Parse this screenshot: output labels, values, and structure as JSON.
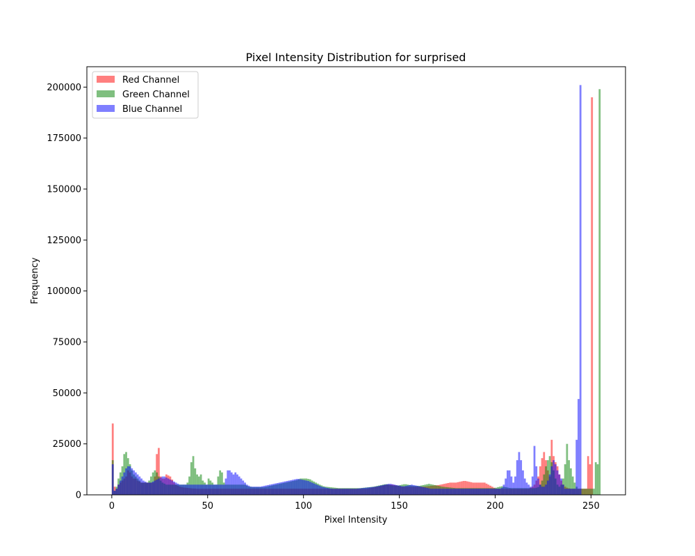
{
  "chart_data": {
    "type": "bar",
    "title": "Pixel Intensity Distribution for surprised",
    "xlabel": "Pixel Intensity",
    "ylabel": "Frequency",
    "xlim": [
      -13,
      268
    ],
    "ylim": [
      0,
      210000
    ],
    "x_ticks": [
      0,
      50,
      100,
      150,
      200,
      250
    ],
    "y_ticks": [
      0,
      25000,
      50000,
      75000,
      100000,
      125000,
      150000,
      175000,
      200000
    ],
    "x_tick_labels": [
      "0",
      "50",
      "100",
      "150",
      "200",
      "250"
    ],
    "y_tick_labels": [
      "0",
      "25000",
      "50000",
      "75000",
      "100000",
      "125000",
      "150000",
      "175000",
      "200000"
    ],
    "legend_position": "upper-left",
    "grid": false,
    "series": [
      {
        "name": "Red Channel",
        "color": "#ff0000",
        "values": [
          35000,
          4000,
          3000,
          5000,
          6000,
          7000,
          8000,
          9000,
          12000,
          11000,
          9000,
          8000,
          8000,
          7000,
          6500,
          6000,
          6000,
          6000,
          6000,
          6000,
          6000,
          6000,
          9000,
          20000,
          23000,
          9000,
          8000,
          8000,
          10000,
          9500,
          9000,
          7500,
          6000,
          5000,
          4500,
          4000,
          3800,
          3600,
          3500,
          3400,
          3300,
          3200,
          3100,
          3100,
          3000,
          3000,
          3000,
          3000,
          3000,
          3000,
          3000,
          3000,
          3000,
          3000,
          3000,
          3000,
          3000,
          3000,
          3000,
          3000,
          3000,
          3000,
          3000,
          3000,
          3000,
          3000,
          3000,
          3000,
          3000,
          3000,
          3000,
          3000,
          3000,
          3000,
          3000,
          3000,
          3000,
          3000,
          3000,
          3000,
          3000,
          3000,
          3000,
          3000,
          3000,
          3000,
          3000,
          3000,
          3000,
          3000,
          3000,
          3000,
          3000,
          3000,
          3000,
          3000,
          3000,
          3000,
          3000,
          3000,
          3000,
          3000,
          3000,
          3000,
          3000,
          3000,
          3000,
          3000,
          3000,
          3000,
          3000,
          3000,
          3000,
          3000,
          3000,
          3000,
          3000,
          3000,
          3000,
          3000,
          3000,
          3000,
          3000,
          3000,
          3000,
          3000,
          3000,
          3000,
          3000,
          3000,
          3000,
          3000,
          3000,
          3100,
          3300,
          3500,
          3700,
          3900,
          4000,
          4200,
          4400,
          4600,
          4800,
          5000,
          5000,
          5000,
          5000,
          4800,
          4600,
          4400,
          4200,
          4000,
          4000,
          4000,
          4000,
          4000,
          4000,
          4000,
          4000,
          4000,
          4000,
          4000,
          4000,
          4100,
          4200,
          4300,
          4400,
          4500,
          4600,
          4700,
          4800,
          5000,
          5200,
          5400,
          5600,
          5800,
          6000,
          6000,
          6000,
          6000,
          6200,
          6400,
          6600,
          6800,
          6800,
          6600,
          6400,
          6200,
          6000,
          6000,
          6000,
          6000,
          6000,
          6000,
          6000,
          5500,
          5000,
          4500,
          4000,
          3500,
          3000,
          3000,
          3000,
          3000,
          3000,
          3000,
          3000,
          3000,
          3000,
          3000,
          3000,
          3000,
          3000,
          3000,
          3000,
          3000,
          3000,
          3000,
          3500,
          4000,
          5000,
          7000,
          9000,
          14000,
          18000,
          21000,
          17000,
          12000,
          9000,
          27000,
          19000,
          16000,
          14000,
          10000,
          7000,
          5000,
          4000,
          3500,
          3200,
          3000,
          3000,
          3000,
          3000,
          3000,
          3000,
          3000,
          3000,
          3000,
          19000,
          15000,
          195000
        ]
      },
      {
        "name": "Green Channel",
        "color": "#008000",
        "values": [
          17000,
          2000,
          4000,
          8000,
          11000,
          14000,
          20000,
          21000,
          18000,
          15000,
          12000,
          10000,
          9000,
          8000,
          7000,
          6000,
          6000,
          6000,
          6000,
          7000,
          9000,
          11000,
          12000,
          11000,
          9000,
          7000,
          6000,
          5500,
          5000,
          5000,
          5000,
          5000,
          5000,
          5000,
          5000,
          5000,
          5000,
          5000,
          5000,
          6000,
          9000,
          16000,
          19000,
          13000,
          10000,
          9000,
          10000,
          7000,
          6000,
          5000,
          8000,
          7000,
          6000,
          5000,
          5000,
          9000,
          12000,
          11000,
          6000,
          5000,
          5000,
          5000,
          5000,
          5000,
          5000,
          5000,
          5000,
          5000,
          5000,
          5000,
          4500,
          4000,
          4000,
          3800,
          3800,
          3800,
          3800,
          3800,
          3800,
          3800,
          4000,
          4200,
          4400,
          4600,
          4800,
          5000,
          5200,
          5400,
          5600,
          5800,
          6000,
          6200,
          6400,
          6600,
          6800,
          7000,
          7200,
          7600,
          8000,
          8000,
          8000,
          8000,
          7800,
          7600,
          7000,
          6500,
          6000,
          5500,
          5000,
          4600,
          4200,
          4000,
          3900,
          3800,
          3700,
          3600,
          3500,
          3400,
          3300,
          3300,
          3300,
          3300,
          3300,
          3300,
          3300,
          3300,
          3300,
          3300,
          3300,
          3300,
          3400,
          3500,
          3600,
          3700,
          3800,
          3900,
          4000,
          4200,
          4400,
          4600,
          4800,
          5000,
          5200,
          5200,
          5000,
          4800,
          4600,
          4600,
          4600,
          4600,
          4800,
          5000,
          5200,
          5200,
          5000,
          4800,
          4600,
          4400,
          4400,
          4400,
          4400,
          4600,
          4800,
          5000,
          5200,
          5400,
          5200,
          5000,
          4800,
          4600,
          4400,
          4200,
          4000,
          3900,
          3800,
          3700,
          3600,
          3500,
          3400,
          3300,
          3300,
          3300,
          3300,
          3300,
          3300,
          3300,
          3300,
          3300,
          3300,
          3300,
          3300,
          3300,
          3300,
          3300,
          3300,
          3300,
          3300,
          3300,
          3300,
          3300,
          3500,
          3800,
          4000,
          4200,
          4000,
          3800,
          3600,
          3400,
          3300,
          3300,
          3300,
          3300,
          3300,
          3300,
          3300,
          3300,
          3300,
          3300,
          3300,
          3300,
          3300,
          3500,
          3800,
          5000,
          7000,
          10000,
          14000,
          17000,
          19000,
          16000,
          12000,
          8000,
          5000,
          4000,
          5000,
          8000,
          15000,
          25000,
          17000,
          13000,
          9000,
          6000,
          4000,
          3000,
          3000,
          3000,
          3000,
          3000,
          3000,
          3000,
          3000,
          3000,
          16000,
          15000,
          199000
        ]
      },
      {
        "name": "Blue Channel",
        "color": "#0000ff",
        "values": [
          15000,
          2000,
          3000,
          5000,
          7000,
          9000,
          11000,
          13000,
          14000,
          14000,
          13000,
          12000,
          11000,
          10000,
          9000,
          8000,
          7000,
          6500,
          6000,
          6000,
          6000,
          6500,
          7000,
          7500,
          8000,
          8500,
          9000,
          9000,
          8500,
          8000,
          7500,
          7000,
          6500,
          6000,
          5500,
          5000,
          5000,
          5000,
          5000,
          5000,
          5000,
          5000,
          5000,
          5000,
          5000,
          5000,
          5000,
          5000,
          5000,
          5000,
          5000,
          5000,
          5000,
          5000,
          5000,
          5000,
          5000,
          5000,
          5000,
          8000,
          12000,
          12000,
          11000,
          10000,
          11000,
          10000,
          9000,
          8000,
          7000,
          6000,
          5000,
          4500,
          4000,
          4000,
          4000,
          4000,
          4000,
          4000,
          4200,
          4400,
          4600,
          4800,
          5000,
          5200,
          5400,
          5600,
          5800,
          6000,
          6200,
          6400,
          6600,
          6800,
          7000,
          7200,
          7400,
          7600,
          7800,
          7800,
          7600,
          7400,
          7200,
          7000,
          6800,
          6400,
          6000,
          5600,
          5200,
          4800,
          4400,
          4000,
          3800,
          3600,
          3400,
          3200,
          3100,
          3000,
          3000,
          3000,
          3000,
          3000,
          3000,
          3000,
          3000,
          3000,
          3000,
          3000,
          3000,
          3000,
          3100,
          3200,
          3300,
          3400,
          3500,
          3600,
          3700,
          3800,
          3900,
          4000,
          4200,
          4400,
          4600,
          4800,
          5000,
          5200,
          5400,
          5400,
          5200,
          5000,
          4800,
          4600,
          4400,
          4200,
          4200,
          4400,
          4600,
          4800,
          5000,
          4800,
          4600,
          4400,
          4200,
          4000,
          3800,
          3600,
          3400,
          3200,
          3000,
          3000,
          3000,
          3000,
          3000,
          3000,
          3000,
          3000,
          3000,
          3000,
          3000,
          3000,
          3000,
          3000,
          3000,
          3000,
          3000,
          3000,
          3000,
          3000,
          3000,
          3000,
          3000,
          3000,
          3000,
          3000,
          3000,
          3000,
          3000,
          3000,
          3000,
          3000,
          3000,
          3000,
          3000,
          3000,
          3000,
          3500,
          5000,
          8000,
          12000,
          12000,
          9000,
          6000,
          9000,
          17000,
          21000,
          17000,
          12000,
          8000,
          6000,
          5000,
          4000,
          9000,
          24000,
          14000,
          8000,
          5000,
          4000,
          4000,
          5000,
          7000,
          10000,
          14000,
          17000,
          15000,
          12000,
          10000,
          8000,
          5000,
          3000,
          3000,
          3000,
          3000,
          3000,
          3000,
          27000,
          47000,
          201000
        ]
      }
    ]
  }
}
